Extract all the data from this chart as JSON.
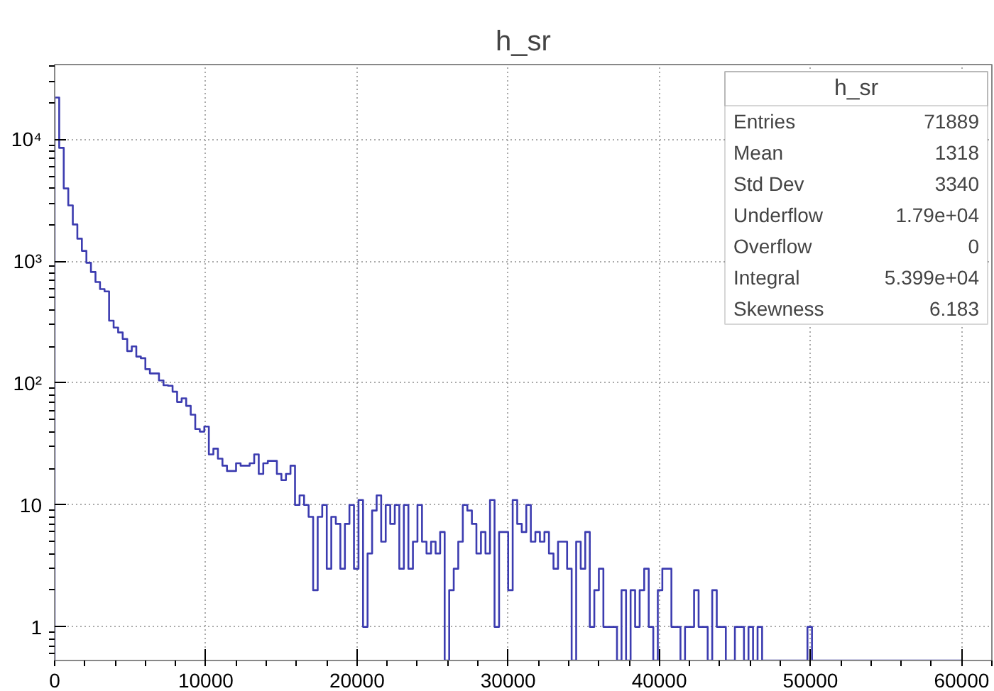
{
  "chart_data": {
    "type": "histogram",
    "title": "h_sr",
    "bins": [
      0,
      300,
      600,
      900,
      1200,
      1500,
      1800,
      2100,
      2400,
      2700,
      3000,
      3300,
      3600,
      3900,
      4200,
      4500,
      4800,
      5100,
      5400,
      5700,
      6000,
      6300,
      6600,
      6900,
      7200,
      7500,
      7800,
      8100,
      8400,
      8700,
      9000,
      9300,
      9600,
      9900,
      10200,
      10500,
      10800,
      11100,
      11400,
      11700,
      12000,
      12300,
      12600,
      12900,
      13200,
      13500,
      13800,
      14100,
      14400,
      14700,
      15000,
      15300,
      15600,
      15900,
      16200,
      16500,
      16800,
      17100,
      17400,
      17700,
      18000,
      18300,
      18600,
      18900,
      19200,
      19500,
      19800,
      20100,
      20400,
      20700,
      21000,
      21300,
      21600,
      21900,
      22200,
      22500,
      22800,
      23100,
      23400,
      23700,
      24000,
      24300,
      24600,
      24900,
      25200,
      25500,
      25800,
      26100,
      26400,
      26700,
      27000,
      27300,
      27600,
      27900,
      28200,
      28500,
      28800,
      29100,
      29400,
      29700,
      30000,
      30300,
      30600,
      30900,
      31200,
      31500,
      31800,
      32100,
      32400,
      32700,
      33000,
      33300,
      33600,
      33900,
      34200,
      34500,
      34800,
      35100,
      35400,
      35700,
      36000,
      36300,
      36600,
      36900,
      37200,
      37500,
      37800,
      38100,
      38400,
      38700,
      39000,
      39300,
      39600,
      39900,
      40200,
      40500,
      40800,
      41100,
      41400,
      41700,
      42000,
      42300,
      42600,
      42900,
      43200,
      43500,
      43800,
      44100,
      44400,
      44700,
      45000,
      45300,
      45600,
      45900,
      46200,
      46500,
      46800,
      47100,
      47400,
      47700,
      48000,
      48300,
      48600,
      48900,
      49200,
      49500,
      49800,
      50100,
      50400,
      50700,
      51000,
      51300,
      51600,
      51900,
      52200,
      52500,
      52800,
      53100,
      53400,
      53700,
      54000,
      54300,
      54600,
      54900,
      55200,
      55500,
      55800,
      56100,
      56400,
      56700,
      57000,
      57300,
      57600,
      57900,
      58200,
      58500,
      58800,
      59100,
      59400,
      59700,
      60000
    ],
    "values": [
      22000,
      8500,
      3950,
      2870,
      2000,
      1530,
      1215,
      970,
      815,
      675,
      590,
      565,
      325,
      285,
      260,
      230,
      183,
      200,
      165,
      160,
      130,
      120,
      120,
      105,
      96,
      95,
      85,
      70,
      75,
      65,
      55,
      42,
      40,
      44,
      26,
      29,
      24,
      21,
      19,
      19,
      22,
      21,
      21,
      22,
      26,
      18,
      22,
      23,
      23,
      18,
      16,
      18,
      21,
      10,
      12,
      10,
      8,
      2,
      8,
      10,
      3,
      8,
      7,
      3,
      7,
      10,
      3,
      11,
      1,
      4,
      9,
      12,
      5,
      10,
      7,
      10,
      3,
      10,
      3,
      5,
      10,
      5,
      4,
      5,
      4,
      6,
      null,
      2,
      3,
      5,
      10,
      9,
      7,
      4,
      6,
      4,
      11,
      1,
      6,
      6,
      2,
      11,
      7,
      6,
      10,
      5,
      6,
      5,
      6,
      4,
      3,
      5,
      5,
      3,
      null,
      5,
      3,
      6,
      1,
      2,
      3,
      1,
      1,
      1,
      null,
      2,
      null,
      2,
      1,
      2,
      3,
      1,
      null,
      2,
      3,
      3,
      1,
      1,
      null,
      1,
      1,
      2,
      1,
      1,
      null,
      2,
      1,
      1,
      null,
      null,
      1,
      1,
      null,
      1,
      null,
      1,
      null,
      null,
      null,
      null,
      null,
      null,
      null,
      null,
      null,
      null,
      1,
      null,
      null,
      null,
      null,
      null,
      null,
      null,
      null,
      null,
      null,
      null,
      null,
      null,
      null,
      null,
      null,
      null,
      null,
      null,
      null,
      null,
      null,
      null,
      null,
      null,
      null,
      null,
      null,
      null,
      null,
      null,
      null,
      null
    ],
    "color": "#3c3cb0",
    "xlim": [
      0,
      62000
    ],
    "xticks": [
      0,
      10000,
      20000,
      30000,
      40000,
      50000,
      60000
    ],
    "ylim": [
      0.53,
      41000
    ],
    "yticks": [
      1,
      10,
      {
        "value": 100,
        "label": "10²"
      },
      {
        "value": 1000,
        "label": "10³"
      },
      {
        "value": 10000,
        "label": "10⁴"
      }
    ],
    "log": "y",
    "grid": true,
    "annotations": [
      "h_sr",
      "Entries",
      "71889",
      "Mean",
      "1318",
      "Std Dev",
      "3340",
      "Underflow",
      "1.79e+04",
      "Overflow",
      "0",
      "Integral",
      "5.399e+04",
      "Skewness",
      "6.183"
    ]
  }
}
